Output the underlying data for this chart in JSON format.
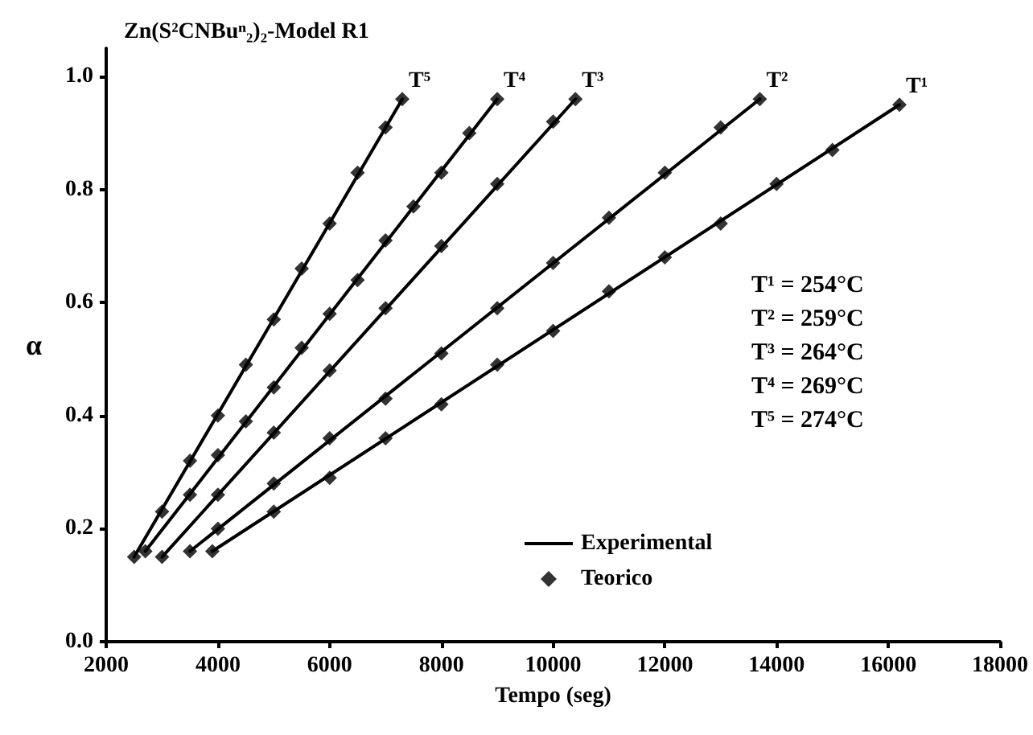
{
  "chart_data": {
    "type": "line",
    "title": "Zn(S²CNBuⁿ₂)₂-Model R1",
    "xlabel": "Tempo (seg)",
    "ylabel": "α",
    "xlim": [
      2000,
      18000
    ],
    "xticks": [
      2000,
      4000,
      6000,
      8000,
      10000,
      12000,
      14000,
      16000,
      18000
    ],
    "ylim": [
      0,
      1.05
    ],
    "yticks": [
      {
        "value": 0,
        "label": "0.0"
      },
      {
        "value": 0.2,
        "label": "0.2"
      },
      {
        "value": 0.4,
        "label": "0.4"
      },
      {
        "value": 0.6,
        "label": "0.6"
      },
      {
        "value": 0.8,
        "label": "0.8"
      },
      {
        "value": 1,
        "label": "1.0"
      }
    ],
    "grid": false,
    "legend": "bottom",
    "line_style": "solid",
    "series": [
      {
        "name": "Experimental",
        "type": "line",
        "color": "#000000",
        "marker": "none",
        "x": [
          2500,
          7300
        ],
        "values": [
          0.15,
          0.96
        ]
      },
      {
        "type": "line",
        "color": "#000000",
        "marker": "none",
        "x": [
          2700,
          9000
        ],
        "values": [
          0.16,
          0.96
        ]
      },
      {
        "type": "line",
        "color": "#000000",
        "marker": "none",
        "x": [
          3000,
          10400
        ],
        "values": [
          0.15,
          0.96
        ]
      },
      {
        "type": "line",
        "color": "#000000",
        "marker": "none",
        "x": [
          3500,
          13700
        ],
        "values": [
          0.16,
          0.96
        ]
      },
      {
        "type": "line",
        "color": "#000000",
        "marker": "none",
        "x": [
          3900,
          16200
        ],
        "values": [
          0.16,
          0.95
        ]
      },
      {
        "name": "Teorico",
        "type": "scatter",
        "color": "#000000",
        "marker": "diamond",
        "x": [
          2500,
          3000,
          3500,
          4000,
          4500,
          5000,
          5500,
          6000,
          6500,
          7000,
          7300
        ],
        "values": [
          0.15,
          0.23,
          0.32,
          0.4,
          0.49,
          0.57,
          0.66,
          0.74,
          0.83,
          0.91,
          0.96
        ]
      },
      {
        "type": "scatter",
        "color": "#000000",
        "marker": "diamond",
        "x": [
          2700,
          3500,
          4000,
          4500,
          5000,
          5500,
          6000,
          6500,
          7000,
          7500,
          8000,
          8500,
          9000
        ],
        "values": [
          0.16,
          0.26,
          0.33,
          0.39,
          0.45,
          0.52,
          0.58,
          0.64,
          0.71,
          0.77,
          0.83,
          0.9,
          0.96
        ]
      },
      {
        "type": "scatter",
        "color": "#000000",
        "marker": "diamond",
        "x": [
          3000,
          4000,
          5000,
          6000,
          7000,
          8000,
          9000,
          10000,
          10400
        ],
        "values": [
          0.15,
          0.26,
          0.37,
          0.48,
          0.59,
          0.7,
          0.81,
          0.92,
          0.96
        ]
      },
      {
        "type": "scatter",
        "color": "#000000",
        "marker": "diamond",
        "x": [
          3500,
          4000,
          5000,
          6000,
          7000,
          8000,
          9000,
          10000,
          11000,
          12000,
          13000,
          13700
        ],
        "values": [
          0.16,
          0.2,
          0.28,
          0.36,
          0.43,
          0.51,
          0.59,
          0.67,
          0.75,
          0.83,
          0.91,
          0.96
        ]
      },
      {
        "type": "scatter",
        "color": "#000000",
        "marker": "diamond",
        "x": [
          3900,
          5000,
          6000,
          7000,
          8000,
          9000,
          10000,
          11000,
          12000,
          13000,
          14000,
          15000,
          16200
        ],
        "values": [
          0.16,
          0.23,
          0.29,
          0.36,
          0.42,
          0.49,
          0.55,
          0.62,
          0.68,
          0.74,
          0.81,
          0.87,
          0.95
        ]
      }
    ],
    "annotations": [
      {
        "text": "T⁵",
        "x": 7300,
        "y": 0.96
      },
      {
        "text": "T⁴",
        "x": 9000,
        "y": 0.96
      },
      {
        "text": "T³",
        "x": 10400,
        "y": 0.96
      },
      {
        "text": "T²",
        "x": 13700,
        "y": 0.96
      },
      {
        "text": "T¹",
        "x": 16200,
        "y": 0.95
      },
      "T¹ = 254°C",
      "T² = 259°C",
      "T³ = 264°C",
      "T⁴ = 269°C",
      "T⁵ = 274°C"
    ]
  }
}
